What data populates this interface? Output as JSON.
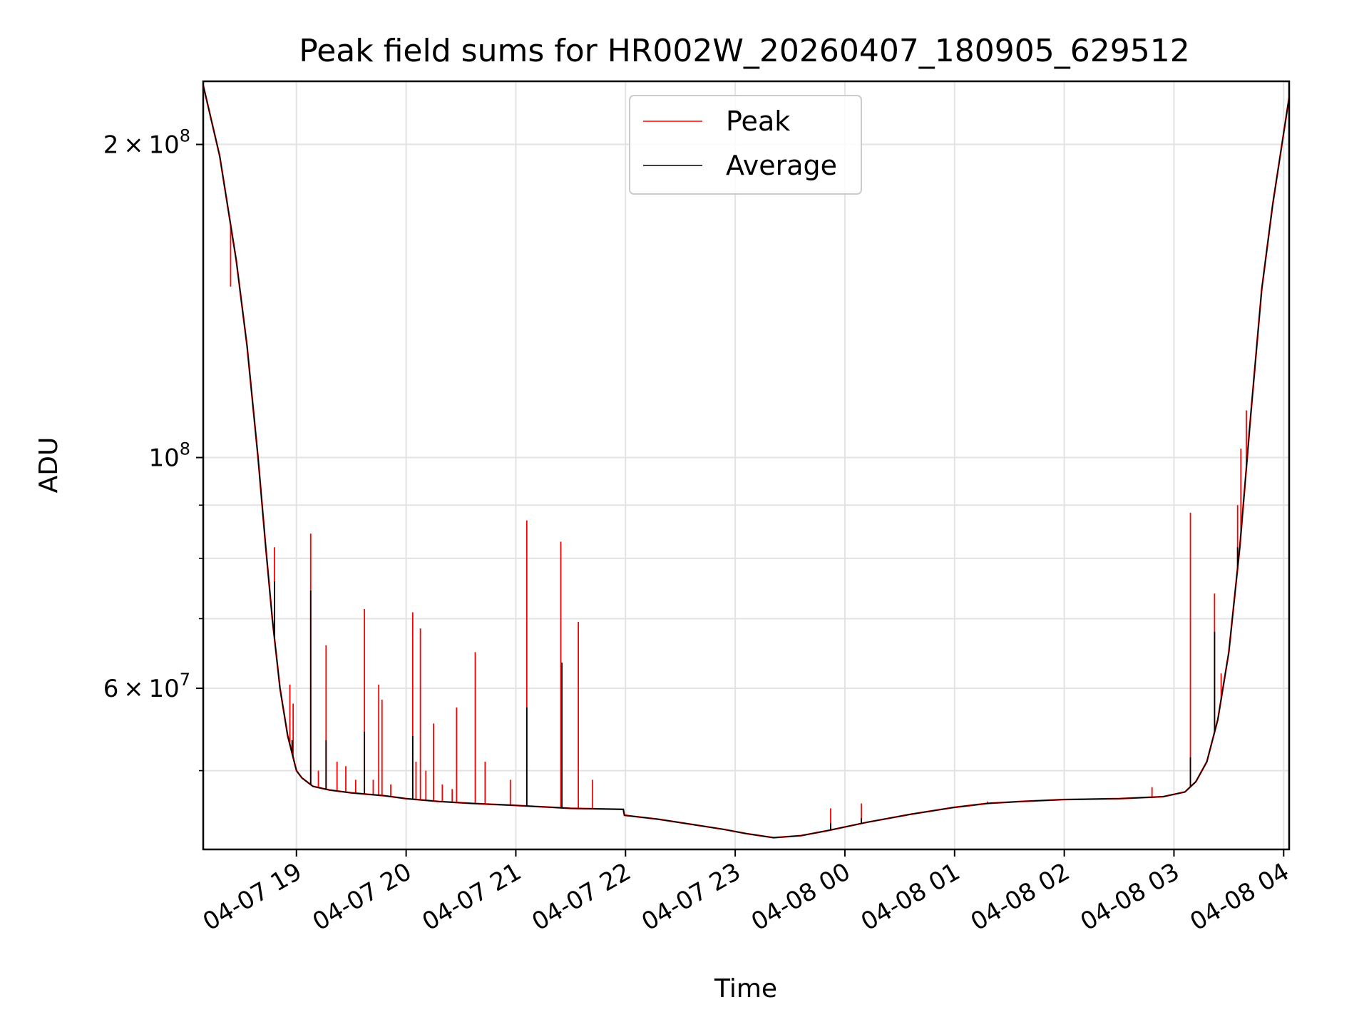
{
  "chart_data": {
    "type": "line",
    "title": "Peak field sums for HR002W_20260407_180905_629512",
    "xlabel": "Time",
    "ylabel": "ADU",
    "yscale": "log",
    "ylim": [
      42000000,
      230000000
    ],
    "xlim_hours": [
      18.15,
      28.05
    ],
    "grid": true,
    "legend_position": "top-center",
    "x_ticks": [
      {
        "label": "04-07 19",
        "hour": 19
      },
      {
        "label": "04-07 20",
        "hour": 20
      },
      {
        "label": "04-07 21",
        "hour": 21
      },
      {
        "label": "04-07 22",
        "hour": 22
      },
      {
        "label": "04-07 23",
        "hour": 23
      },
      {
        "label": "04-08 00",
        "hour": 24
      },
      {
        "label": "04-08 01",
        "hour": 25
      },
      {
        "label": "04-08 02",
        "hour": 26
      },
      {
        "label": "04-08 03",
        "hour": 27
      },
      {
        "label": "04-08 04",
        "hour": 28
      }
    ],
    "y_ticks": [
      {
        "mantissa": "2",
        "exponent": "8",
        "value": 200000000
      },
      {
        "mantissa": "",
        "exponent": "8",
        "value": 100000000
      },
      {
        "mantissa": "6",
        "exponent": "7",
        "value": 60000000
      }
    ],
    "y_minor_ticks": [
      50000000,
      70000000,
      80000000,
      90000000
    ],
    "series": [
      {
        "name": "Average",
        "color": "#000000",
        "points": [
          [
            18.15,
            228000000
          ],
          [
            18.3,
            195000000
          ],
          [
            18.45,
            155000000
          ],
          [
            18.55,
            128000000
          ],
          [
            18.65,
            100000000
          ],
          [
            18.72,
            82000000
          ],
          [
            18.78,
            70000000
          ],
          [
            18.85,
            60000000
          ],
          [
            18.92,
            54000000
          ],
          [
            19.0,
            50000000
          ],
          [
            19.05,
            49200000
          ],
          [
            19.15,
            48300000
          ],
          [
            19.3,
            47900000
          ],
          [
            19.5,
            47600000
          ],
          [
            19.8,
            47300000
          ],
          [
            20.0,
            47000000
          ],
          [
            20.3,
            46700000
          ],
          [
            20.6,
            46500000
          ],
          [
            21.0,
            46300000
          ],
          [
            21.5,
            46000000
          ],
          [
            21.98,
            45900000
          ],
          [
            21.99,
            45300000
          ],
          [
            22.3,
            44900000
          ],
          [
            22.6,
            44400000
          ],
          [
            22.9,
            43900000
          ],
          [
            23.1,
            43500000
          ],
          [
            23.35,
            43100000
          ],
          [
            23.6,
            43300000
          ],
          [
            23.85,
            43800000
          ],
          [
            24.2,
            44600000
          ],
          [
            24.6,
            45400000
          ],
          [
            25.0,
            46100000
          ],
          [
            25.3,
            46500000
          ],
          [
            25.6,
            46700000
          ],
          [
            26.0,
            46900000
          ],
          [
            26.5,
            47000000
          ],
          [
            26.9,
            47200000
          ],
          [
            27.1,
            47700000
          ],
          [
            27.2,
            48800000
          ],
          [
            27.3,
            51000000
          ],
          [
            27.4,
            56000000
          ],
          [
            27.5,
            65000000
          ],
          [
            27.6,
            82000000
          ],
          [
            27.7,
            110000000
          ],
          [
            27.8,
            145000000
          ],
          [
            27.9,
            175000000
          ],
          [
            28.05,
            222000000
          ]
        ],
        "spikes": [
          [
            18.8,
            76000000
          ],
          [
            18.96,
            53500000
          ],
          [
            19.13,
            74500000
          ],
          [
            19.27,
            53500000
          ],
          [
            19.62,
            54500000
          ],
          [
            20.06,
            54000000
          ],
          [
            21.1,
            57500000
          ],
          [
            21.42,
            63500000
          ],
          [
            23.87,
            44500000
          ],
          [
            24.15,
            45000000
          ],
          [
            27.15,
            51500000
          ],
          [
            27.37,
            68000000
          ],
          [
            27.58,
            82000000
          ]
        ]
      },
      {
        "name": "Peak",
        "color": "#ff0000",
        "spikes": [
          [
            18.4,
            146000000
          ],
          [
            18.8,
            82000000
          ],
          [
            18.94,
            60500000
          ],
          [
            18.97,
            58000000
          ],
          [
            19.13,
            84500000
          ],
          [
            19.2,
            50000000
          ],
          [
            19.27,
            66000000
          ],
          [
            19.37,
            51000000
          ],
          [
            19.45,
            50500000
          ],
          [
            19.54,
            49000000
          ],
          [
            19.62,
            71500000
          ],
          [
            19.7,
            49000000
          ],
          [
            19.75,
            60500000
          ],
          [
            19.78,
            58500000
          ],
          [
            19.86,
            48500000
          ],
          [
            20.06,
            71000000
          ],
          [
            20.09,
            51000000
          ],
          [
            20.13,
            68500000
          ],
          [
            20.18,
            50000000
          ],
          [
            20.25,
            55500000
          ],
          [
            20.33,
            48500000
          ],
          [
            20.42,
            48000000
          ],
          [
            20.46,
            57500000
          ],
          [
            20.63,
            65000000
          ],
          [
            20.72,
            51000000
          ],
          [
            20.95,
            49000000
          ],
          [
            21.1,
            87000000
          ],
          [
            21.41,
            83000000
          ],
          [
            21.57,
            69500000
          ],
          [
            21.7,
            49000000
          ],
          [
            23.87,
            46000000
          ],
          [
            24.15,
            46500000
          ],
          [
            25.3,
            46700000
          ],
          [
            26.8,
            48200000
          ],
          [
            27.15,
            88500000
          ],
          [
            27.37,
            74000000
          ],
          [
            27.43,
            62000000
          ],
          [
            27.58,
            90000000
          ],
          [
            27.61,
            102000000
          ],
          [
            27.66,
            111000000
          ]
        ]
      }
    ]
  }
}
